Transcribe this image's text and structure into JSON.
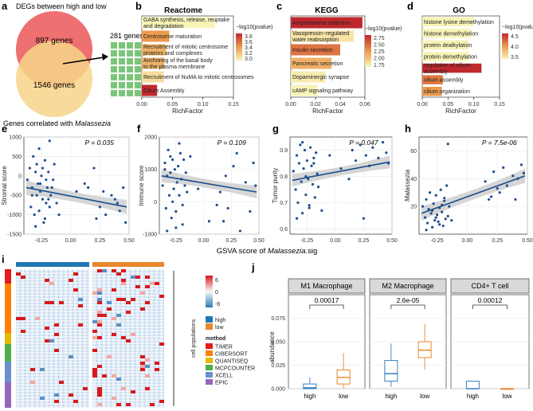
{
  "panel_labels": {
    "a": "a",
    "b": "b",
    "c": "c",
    "d": "d",
    "e": "e",
    "f": "f",
    "g": "g",
    "h": "h",
    "i": "i",
    "j": "j"
  },
  "panel_a": {
    "title": "DEGs between high and low",
    "top_count": "897 genes",
    "bottom_count": "1546 genes",
    "overlap_count": "281 genes",
    "caption_prefix": "Genes correlated with ",
    "caption_species": "Malassezia",
    "colors": {
      "top": "#ee7070",
      "bottom": "#f7d58a",
      "grid": "#7cc47a"
    }
  },
  "chart_data": [
    {
      "id": "b",
      "type": "bar",
      "title": "Reactome",
      "xlabel": "RichFactor",
      "xlim": [
        0,
        0.15
      ],
      "xticks": [
        "0.00",
        "0.05",
        "0.10",
        "0.15"
      ],
      "legend_title": "−log10(pvalue)",
      "legend_ticks": [
        "3.8",
        "3.6",
        "3.4",
        "3.2",
        "3.0"
      ],
      "categories": [
        [
          "GABA synthesis, release, reuptake",
          "and degradation"
        ],
        [
          "Centrosome maturation"
        ],
        [
          "Recruitment of mitotic centrosome",
          "proteins and complexes"
        ],
        [
          "Anchoring of the basal body",
          "to the plasma membrane"
        ],
        [
          "Recruitment of NuMA to mitotic centrosomes"
        ],
        [
          "Cilium Assembly"
        ]
      ],
      "values": [
        0.12,
        0.045,
        0.04,
        0.037,
        0.036,
        0.025
      ],
      "neglog10p": [
        3.0,
        3.4,
        3.3,
        3.3,
        3.1,
        3.8
      ]
    },
    {
      "id": "c",
      "type": "bar",
      "title": "KEGG",
      "xlabel": "RichFactor",
      "xlim": [
        0,
        0.06
      ],
      "xticks": [
        "0.00",
        "0.02",
        "0.04",
        "0.06"
      ],
      "legend_title": "−log10(pvalue)",
      "legend_ticks": [
        "2.75",
        "2.50",
        "2.25",
        "2.00",
        "1.75"
      ],
      "categories": [
        [
          "Amphetamine addiction"
        ],
        [
          "Vasopressin−regulated",
          "water reabsorption"
        ],
        [
          "Insulin secretion"
        ],
        [
          "Pancreatic secretion"
        ],
        [
          "Dopaminergic synapse"
        ],
        [
          "cAMP signaling pathway"
        ]
      ],
      "values": [
        0.058,
        0.051,
        0.04,
        0.033,
        0.028,
        0.022
      ],
      "neglog10p": [
        2.75,
        1.8,
        2.4,
        2.1,
        1.75,
        1.7
      ]
    },
    {
      "id": "d",
      "type": "bar",
      "title": "GO",
      "xlabel": "RichFactor",
      "xlim": [
        0,
        0.15
      ],
      "xticks": [
        "0.00",
        "0.05",
        "0.10",
        "0.15"
      ],
      "legend_title": "−log10(pvalue)",
      "legend_ticks": [
        "4.5",
        "4.0",
        "3.5"
      ],
      "categories": [
        [
          "histone lysine demethylation"
        ],
        [
          "histone demethylation"
        ],
        [
          "protein dealkylation"
        ],
        [
          "protein demethylation"
        ],
        [
          "regulation of cilium",
          "assembly"
        ],
        [
          "cilium assembly"
        ],
        [
          "cilium organization"
        ]
      ],
      "values": [
        0.1,
        0.095,
        0.09,
        0.09,
        0.115,
        0.04,
        0.038
      ],
      "neglog10p": [
        3.3,
        3.3,
        3.3,
        3.3,
        4.7,
        4.2,
        4.0
      ]
    },
    {
      "id": "e",
      "type": "scatter",
      "ylabel": "Stromal score",
      "annotation": "P = 0.035",
      "xlim": [
        -0.4,
        0.5
      ],
      "ylim": [
        -1500,
        1000
      ],
      "xticks": [
        "-0.25",
        "0.00",
        "0.25",
        "0.50"
      ],
      "yticks": [
        "1000",
        "500",
        "0",
        "-500",
        "-1000",
        "-1500"
      ],
      "fit": {
        "x": [
          -0.38,
          0.48
        ],
        "y": [
          -300,
          -800
        ]
      },
      "x": [
        -0.37,
        -0.35,
        -0.34,
        -0.33,
        -0.32,
        -0.31,
        -0.3,
        -0.29,
        -0.29,
        -0.28,
        -0.27,
        -0.27,
        -0.26,
        -0.25,
        -0.24,
        -0.24,
        -0.23,
        -0.22,
        -0.21,
        -0.21,
        -0.2,
        -0.19,
        -0.18,
        -0.18,
        -0.17,
        -0.16,
        -0.15,
        -0.14,
        -0.3,
        -0.22,
        -0.33,
        -0.26,
        -0.19,
        0.15,
        0.2,
        0.25,
        0.3,
        0.35,
        0.4,
        0.45,
        0.47,
        0.12,
        0.42,
        0.38,
        0.22,
        0.28,
        -0.12,
        -0.1,
        0.05
      ],
      "y": [
        -100,
        200,
        -800,
        -300,
        500,
        -1000,
        100,
        -500,
        300,
        -200,
        -900,
        700,
        -400,
        0,
        -600,
        200,
        -1200,
        400,
        -700,
        -100,
        -300,
        100,
        -800,
        900,
        -500,
        -300,
        -100,
        300,
        -1300,
        -1100,
        -500,
        -200,
        -600,
        -300,
        200,
        -800,
        -1000,
        -500,
        -700,
        -300,
        -1200,
        -200,
        -900,
        -600,
        -1100,
        -400,
        -700,
        -1000,
        -400
      ]
    },
    {
      "id": "f",
      "type": "scatter",
      "ylabel": "Immune score",
      "annotation": "P = 0.109",
      "xlim": [
        -0.4,
        0.5
      ],
      "ylim": [
        -1000,
        2000
      ],
      "xticks": [
        "-0.25",
        "0.00",
        "0.25",
        "0.50"
      ],
      "yticks": [
        "2000",
        "1000",
        "0",
        "-1000"
      ],
      "fit": {
        "x": [
          -0.38,
          0.48
        ],
        "y": [
          800,
          300
        ]
      },
      "x": [
        -0.37,
        -0.35,
        -0.34,
        -0.33,
        -0.32,
        -0.31,
        -0.3,
        -0.29,
        -0.28,
        -0.27,
        -0.26,
        -0.25,
        -0.24,
        -0.23,
        -0.22,
        -0.21,
        -0.2,
        -0.19,
        -0.18,
        -0.17,
        -0.16,
        -0.15,
        -0.33,
        -0.28,
        -0.22,
        -0.19,
        -0.25,
        -0.3,
        -0.35,
        0.15,
        0.18,
        0.22,
        0.27,
        0.3,
        0.33,
        0.38,
        0.42,
        0.45,
        0.47,
        0.2,
        0.12,
        -0.12,
        0.05,
        -0.05
      ],
      "y": [
        500,
        1200,
        -200,
        800,
        1600,
        200,
        900,
        -500,
        1300,
        400,
        1000,
        -800,
        600,
        1100,
        200,
        1500,
        700,
        -100,
        1300,
        500,
        900,
        300,
        -900,
        0,
        1800,
        -700,
        -300,
        1400,
        1000,
        300,
        -600,
        -200,
        1100,
        1500,
        -900,
        600,
        -300,
        1200,
        500,
        800,
        -100,
        1400,
        -600,
        400
      ]
    },
    {
      "id": "g",
      "type": "scatter",
      "ylabel": "Tumor purity",
      "annotation": "P = 0.047",
      "xlim": [
        -0.4,
        0.5
      ],
      "ylim": [
        0.58,
        0.95
      ],
      "xticks": [
        "-0.25",
        "0.00",
        "0.25",
        "0.50"
      ],
      "yticks": [
        "0.9",
        "0.8",
        "0.7",
        "0.6"
      ],
      "fit": {
        "x": [
          -0.38,
          0.48
        ],
        "y": [
          0.785,
          0.855
        ]
      },
      "x": [
        -0.37,
        -0.35,
        -0.34,
        -0.33,
        -0.32,
        -0.31,
        -0.3,
        -0.29,
        -0.28,
        -0.27,
        -0.26,
        -0.25,
        -0.24,
        -0.23,
        -0.22,
        -0.21,
        -0.2,
        -0.19,
        -0.18,
        -0.17,
        -0.16,
        -0.15,
        -0.34,
        -0.29,
        -0.23,
        -0.19,
        -0.26,
        0.15,
        0.18,
        0.22,
        0.27,
        0.3,
        0.33,
        0.38,
        0.42,
        0.45,
        0.47,
        0.25,
        0.12,
        -0.12,
        0.05,
        -0.05
      ],
      "y": [
        0.82,
        0.75,
        0.88,
        0.7,
        0.85,
        0.92,
        0.78,
        0.66,
        0.83,
        0.9,
        0.73,
        0.86,
        0.79,
        0.69,
        0.91,
        0.84,
        0.77,
        0.87,
        0.72,
        0.89,
        0.81,
        0.76,
        0.64,
        0.93,
        0.68,
        0.85,
        0.8,
        0.9,
        0.86,
        0.92,
        0.88,
        0.84,
        0.91,
        0.87,
        0.93,
        0.89,
        0.85,
        0.64,
        0.79,
        0.67,
        0.83,
        0.88
      ]
    },
    {
      "id": "h",
      "type": "scatter",
      "ylabel": "Malassezia",
      "annotation": "P = 7.5e-06",
      "xlim": [
        -0.4,
        0.5
      ],
      "ylim": [
        0,
        70
      ],
      "xticks": [
        "-0.25",
        "0.00",
        "0.25",
        "0.50"
      ],
      "yticks": [
        "60",
        "40",
        "20"
      ],
      "fit": {
        "x": [
          -0.38,
          0.48
        ],
        "y": [
          15,
          42
        ]
      },
      "x": [
        -0.37,
        -0.35,
        -0.34,
        -0.33,
        -0.32,
        -0.31,
        -0.3,
        -0.29,
        -0.28,
        -0.27,
        -0.26,
        -0.25,
        -0.24,
        -0.23,
        -0.22,
        -0.21,
        -0.2,
        -0.19,
        -0.18,
        -0.17,
        -0.16,
        -0.15,
        -0.34,
        -0.29,
        -0.23,
        -0.19,
        -0.26,
        -0.21,
        -0.13,
        0.15,
        0.18,
        0.22,
        0.27,
        0.3,
        0.33,
        0.38,
        0.42,
        0.45,
        0.47,
        0.2,
        0.25,
        0.4,
        -0.16
      ],
      "y": [
        20,
        12,
        25,
        8,
        18,
        30,
        15,
        5,
        22,
        10,
        28,
        14,
        9,
        19,
        32,
        16,
        6,
        24,
        11,
        35,
        13,
        20,
        3,
        17,
        7,
        26,
        12,
        21,
        10,
        38,
        25,
        45,
        30,
        48,
        35,
        42,
        40,
        50,
        44,
        27,
        33,
        25,
        65
      ]
    },
    {
      "id": "j",
      "type": "box",
      "ylabel": "abundance",
      "ylim": [
        0,
        0.1
      ],
      "yticks": [
        "0.000",
        "0.025",
        "0.050",
        "0.075"
      ],
      "groups": [
        "high",
        "low"
      ],
      "facets": [
        {
          "name": "M1 Macrophage",
          "pvalue": "0.00017",
          "boxes": [
            {
              "group": "high",
              "min": 0,
              "q1": 0,
              "median": 0.001,
              "q3": 0.005,
              "max": 0.012
            },
            {
              "group": "low",
              "min": 0,
              "q1": 0.005,
              "median": 0.012,
              "q3": 0.02,
              "max": 0.038
            }
          ]
        },
        {
          "name": "M2 Macrophage",
          "pvalue": "2.6e-05",
          "boxes": [
            {
              "group": "high",
              "min": 0.002,
              "q1": 0.008,
              "median": 0.016,
              "q3": 0.03,
              "max": 0.048
            },
            {
              "group": "low",
              "min": 0.02,
              "q1": 0.033,
              "median": 0.041,
              "q3": 0.05,
              "max": 0.069
            }
          ]
        },
        {
          "name": "CD4+ T cell",
          "pvalue": "0.00012",
          "boxes": [
            {
              "group": "high",
              "min": 0,
              "q1": 0,
              "median": 0,
              "q3": 0.008,
              "max": 0.008
            },
            {
              "group": "low",
              "min": 0,
              "q1": 0,
              "median": 0,
              "q3": 0,
              "max": 0
            }
          ]
        }
      ]
    }
  ],
  "shared_xlabel_prefix": "GSVA score of ",
  "shared_xlabel_species": "Malassezia",
  "shared_xlabel_suffix": ".sig",
  "panel_i": {
    "scale_ticks": [
      "6",
      "0",
      "-6"
    ],
    "group_legend": [
      {
        "label": "high",
        "color": "#1f77b4"
      },
      {
        "label": "low",
        "color": "#e8872b"
      }
    ],
    "method_title": "method",
    "methods": [
      {
        "label": "TIMER",
        "color": "#e41a1c"
      },
      {
        "label": "CIBERSORT",
        "color": "#ff7f00"
      },
      {
        "label": "QUANTISEQ",
        "color": "#e6b800"
      },
      {
        "label": "MCPCOUNTER",
        "color": "#4daf4a"
      },
      {
        "label": "XCELL",
        "color": "#6a8fcf"
      },
      {
        "label": "EPIC",
        "color": "#9467bd"
      }
    ],
    "row_axis_label": "cell populations"
  },
  "colors": {
    "bar_hi": "#cc3b3b",
    "bar_lo": "#f4f0b0",
    "point": "#1f4e8c",
    "fit": "#174f8c",
    "band": "#c8c8c8",
    "box_high": "#3a7fc1",
    "box_low": "#e8872b"
  }
}
